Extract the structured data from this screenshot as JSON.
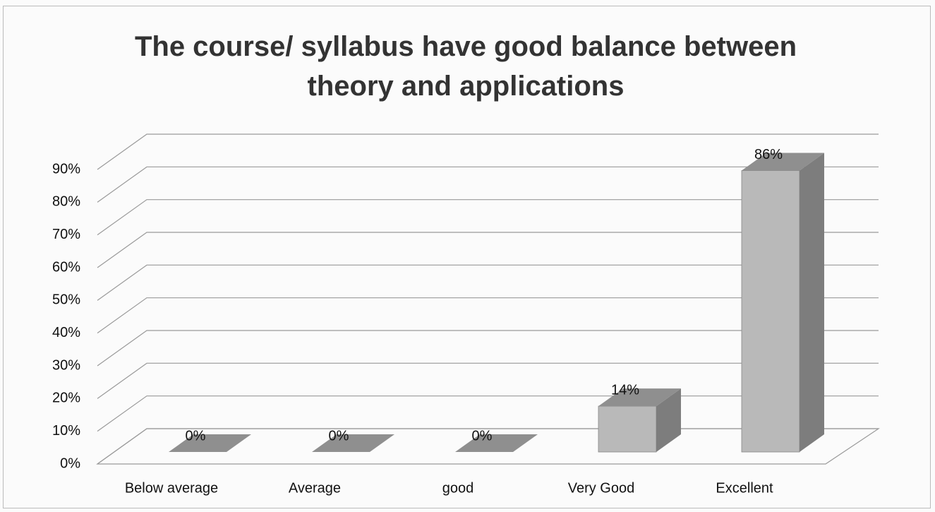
{
  "chart_data": {
    "type": "bar3d",
    "title": "The course/ syllabus have good balance between theory and applications",
    "categories": [
      "Below average",
      "Average",
      "good",
      "Very Good",
      "Excellent"
    ],
    "values": [
      0,
      0,
      0,
      14,
      86
    ],
    "value_labels": [
      "0%",
      "0%",
      "0%",
      "14%",
      "86%"
    ],
    "color": "#b9b9b9",
    "ylim": [
      0,
      90
    ],
    "yticks": [
      {
        "value": 0,
        "label": "0%"
      },
      {
        "value": 10,
        "label": "10%"
      },
      {
        "value": 20,
        "label": "20%"
      },
      {
        "value": 30,
        "label": "30%"
      },
      {
        "value": 40,
        "label": "40%"
      },
      {
        "value": 50,
        "label": "50%"
      },
      {
        "value": 60,
        "label": "60%"
      },
      {
        "value": 70,
        "label": "70%"
      },
      {
        "value": 80,
        "label": "80%"
      },
      {
        "value": 90,
        "label": "90%"
      }
    ],
    "grid": true
  }
}
